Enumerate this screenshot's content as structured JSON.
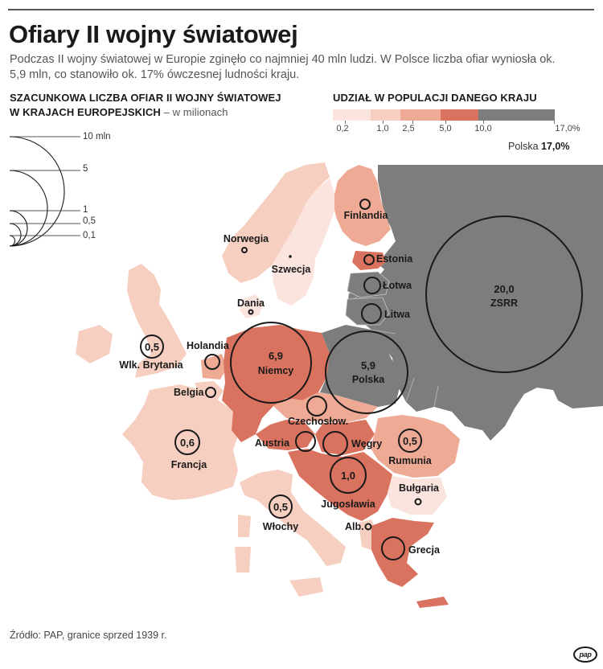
{
  "title": "Ofiary II wojny światowej",
  "intro": "Podczas II wojny światowej w Europie zginęło co najmniej 40 mln ludzi. W Polsce liczba ofiar wyniosła ok. 5,9 mln, co stanowiło ok. 17% ówczesnej ludności kraju.",
  "size_legend": {
    "heading_line1": "SZACUNKOWA LICZBA OFIAR II WOJNY ŚWIATOWEJ",
    "heading_line2": "W KRAJACH EUROPEJSKICH",
    "heading_unit": " – w milionach",
    "labels": [
      "10 mln",
      "5",
      "1",
      "0,5",
      "0,1"
    ]
  },
  "color_legend": {
    "heading": "UDZIAŁ W POPULACJI DANEGO KRAJU",
    "ticks": [
      "0,2",
      "1,0",
      "2,5",
      "5,0",
      "10,0",
      "17,0%"
    ],
    "colors": [
      "#fbe4dd",
      "#f6cfc1",
      "#eeaa95",
      "#d9725e",
      "#7d7d7d"
    ],
    "note_prefix": "Polska ",
    "note_value": "17,0%"
  },
  "chart_data": {
    "type": "map",
    "unit": "mln",
    "countries": [
      {
        "name": "ZSRR",
        "victims": "20,0",
        "share_class": 5
      },
      {
        "name": "Niemcy",
        "victims": "6,9",
        "share_class": 4
      },
      {
        "name": "Polska",
        "victims": "5,9",
        "share_class": 5
      },
      {
        "name": "Jugosławia",
        "victims": "1,0",
        "share_class": 4
      },
      {
        "name": "Francja",
        "victims": "0,6",
        "share_class": 2
      },
      {
        "name": "Wlk. Brytania",
        "victims": "0,5",
        "share_class": 2
      },
      {
        "name": "Włochy",
        "victims": "0,5",
        "share_class": 2
      },
      {
        "name": "Rumunia",
        "victims": "0,5",
        "share_class": 3
      },
      {
        "name": "Węgry",
        "share_class": 4
      },
      {
        "name": "Austria",
        "share_class": 4
      },
      {
        "name": "Czechosłow.",
        "share_class": 3
      },
      {
        "name": "Grecja",
        "share_class": 4
      },
      {
        "name": "Holandia",
        "share_class": 3
      },
      {
        "name": "Belgia",
        "share_class": 2
      },
      {
        "name": "Litwa",
        "share_class": 5
      },
      {
        "name": "Łotwa",
        "share_class": 5
      },
      {
        "name": "Estonia",
        "share_class": 4
      },
      {
        "name": "Finlandia",
        "share_class": 3
      },
      {
        "name": "Norwegia",
        "share_class": 2
      },
      {
        "name": "Szwecja",
        "share_class": 1
      },
      {
        "name": "Dania",
        "share_class": 1
      },
      {
        "name": "Alb.",
        "share_class": 2
      },
      {
        "name": "Bułgaria",
        "share_class": 1
      }
    ]
  },
  "source": "Źródło: PAP, granice sprzed 1939 r.",
  "logo": "pap"
}
